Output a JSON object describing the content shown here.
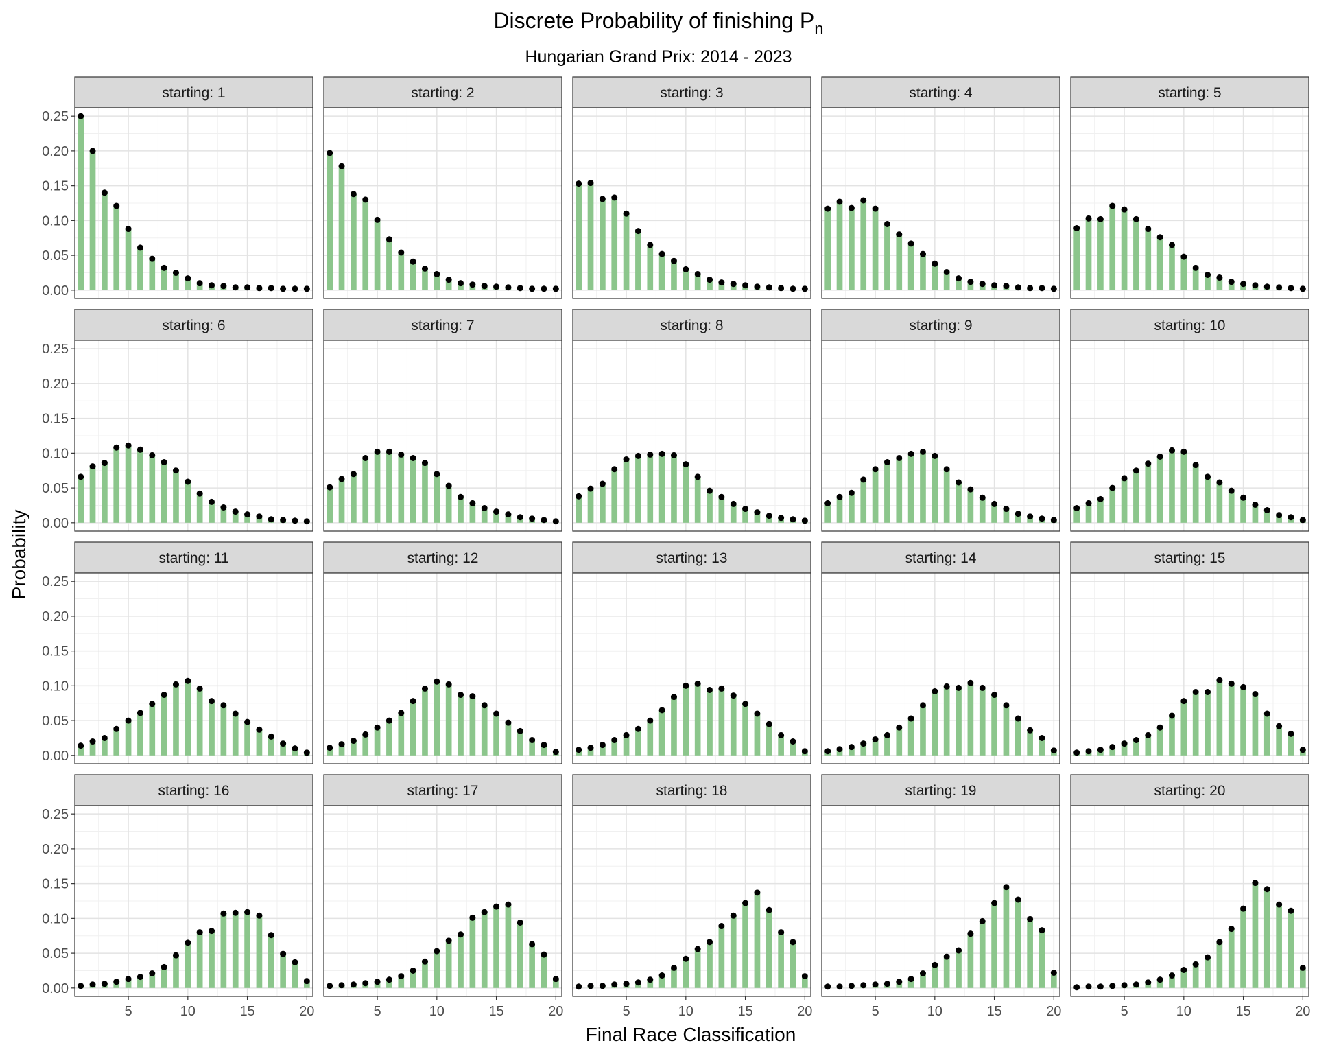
{
  "chart_data": {
    "type": "bar",
    "title": "Discrete Probability of finishing P",
    "title_subscript": "n",
    "subtitle": "Hungarian Grand Prix: 2014 - 2023",
    "xlabel": "Final Race Classification",
    "ylabel": "Probability",
    "xlim": [
      0.5,
      20.5
    ],
    "ylim": [
      -0.012,
      0.262
    ],
    "x_ticks": [
      5,
      10,
      15,
      20
    ],
    "y_ticks": [
      0.0,
      0.05,
      0.1,
      0.15,
      0.2,
      0.25
    ],
    "y_tick_labels": [
      "0.00",
      "0.05",
      "0.10",
      "0.15",
      "0.20",
      "0.25"
    ],
    "facet_rows": 4,
    "facet_cols": 5,
    "grid": true,
    "bar_color": "#8cc68c",
    "point_color": "#000000",
    "strip_fill": "#d9d9d9",
    "x": [
      1,
      2,
      3,
      4,
      5,
      6,
      7,
      8,
      9,
      10,
      11,
      12,
      13,
      14,
      15,
      16,
      17,
      18,
      19,
      20
    ],
    "panels": [
      {
        "label": "starting: 1",
        "values": [
          0.25,
          0.2,
          0.14,
          0.121,
          0.088,
          0.061,
          0.045,
          0.032,
          0.025,
          0.017,
          0.01,
          0.007,
          0.006,
          0.004,
          0.004,
          0.003,
          0.003,
          0.002,
          0.002,
          0.002
        ]
      },
      {
        "label": "starting: 2",
        "values": [
          0.197,
          0.178,
          0.138,
          0.13,
          0.101,
          0.073,
          0.054,
          0.041,
          0.031,
          0.023,
          0.015,
          0.01,
          0.008,
          0.006,
          0.005,
          0.004,
          0.003,
          0.002,
          0.002,
          0.002
        ]
      },
      {
        "label": "starting: 3",
        "values": [
          0.153,
          0.154,
          0.131,
          0.133,
          0.11,
          0.085,
          0.065,
          0.052,
          0.042,
          0.03,
          0.023,
          0.015,
          0.011,
          0.009,
          0.007,
          0.005,
          0.004,
          0.003,
          0.002,
          0.002
        ]
      },
      {
        "label": "starting: 4",
        "values": [
          0.117,
          0.127,
          0.118,
          0.129,
          0.117,
          0.095,
          0.08,
          0.067,
          0.052,
          0.038,
          0.026,
          0.017,
          0.012,
          0.009,
          0.007,
          0.006,
          0.004,
          0.003,
          0.003,
          0.002
        ]
      },
      {
        "label": "starting: 5",
        "values": [
          0.089,
          0.103,
          0.102,
          0.121,
          0.116,
          0.102,
          0.088,
          0.076,
          0.065,
          0.048,
          0.032,
          0.022,
          0.018,
          0.012,
          0.009,
          0.007,
          0.005,
          0.004,
          0.003,
          0.002
        ]
      },
      {
        "label": "starting: 6",
        "values": [
          0.066,
          0.081,
          0.086,
          0.108,
          0.111,
          0.105,
          0.097,
          0.087,
          0.075,
          0.059,
          0.042,
          0.03,
          0.022,
          0.016,
          0.012,
          0.009,
          0.005,
          0.004,
          0.003,
          0.002
        ]
      },
      {
        "label": "starting: 7",
        "values": [
          0.051,
          0.063,
          0.07,
          0.093,
          0.102,
          0.102,
          0.098,
          0.093,
          0.086,
          0.07,
          0.053,
          0.037,
          0.028,
          0.021,
          0.016,
          0.012,
          0.008,
          0.006,
          0.004,
          0.002
        ]
      },
      {
        "label": "starting: 8",
        "values": [
          0.038,
          0.049,
          0.056,
          0.077,
          0.091,
          0.096,
          0.098,
          0.099,
          0.097,
          0.084,
          0.066,
          0.046,
          0.037,
          0.027,
          0.02,
          0.015,
          0.01,
          0.007,
          0.005,
          0.003
        ]
      },
      {
        "label": "starting: 9",
        "values": [
          0.028,
          0.037,
          0.043,
          0.062,
          0.077,
          0.087,
          0.093,
          0.099,
          0.102,
          0.096,
          0.077,
          0.058,
          0.048,
          0.036,
          0.027,
          0.02,
          0.013,
          0.009,
          0.006,
          0.004
        ]
      },
      {
        "label": "starting: 10",
        "values": [
          0.021,
          0.028,
          0.034,
          0.05,
          0.064,
          0.075,
          0.085,
          0.095,
          0.104,
          0.102,
          0.083,
          0.066,
          0.058,
          0.046,
          0.036,
          0.026,
          0.018,
          0.011,
          0.008,
          0.004
        ]
      },
      {
        "label": "starting: 11",
        "values": [
          0.014,
          0.02,
          0.025,
          0.038,
          0.05,
          0.061,
          0.074,
          0.087,
          0.102,
          0.107,
          0.096,
          0.078,
          0.072,
          0.06,
          0.048,
          0.037,
          0.027,
          0.017,
          0.01,
          0.004
        ]
      },
      {
        "label": "starting: 12",
        "values": [
          0.011,
          0.016,
          0.021,
          0.03,
          0.04,
          0.05,
          0.061,
          0.078,
          0.096,
          0.106,
          0.102,
          0.087,
          0.085,
          0.072,
          0.06,
          0.047,
          0.035,
          0.022,
          0.015,
          0.005
        ]
      },
      {
        "label": "starting: 13",
        "values": [
          0.008,
          0.011,
          0.015,
          0.022,
          0.029,
          0.038,
          0.05,
          0.065,
          0.084,
          0.1,
          0.103,
          0.094,
          0.096,
          0.086,
          0.074,
          0.06,
          0.045,
          0.029,
          0.02,
          0.006
        ]
      },
      {
        "label": "starting: 14",
        "values": [
          0.006,
          0.009,
          0.012,
          0.017,
          0.023,
          0.029,
          0.04,
          0.053,
          0.072,
          0.092,
          0.099,
          0.097,
          0.104,
          0.097,
          0.087,
          0.072,
          0.053,
          0.036,
          0.025,
          0.007
        ]
      },
      {
        "label": "starting: 15",
        "values": [
          0.004,
          0.006,
          0.008,
          0.012,
          0.017,
          0.022,
          0.029,
          0.04,
          0.057,
          0.078,
          0.091,
          0.091,
          0.108,
          0.103,
          0.098,
          0.088,
          0.06,
          0.042,
          0.031,
          0.008
        ]
      },
      {
        "label": "starting: 16",
        "values": [
          0.003,
          0.005,
          0.006,
          0.009,
          0.013,
          0.016,
          0.021,
          0.03,
          0.047,
          0.065,
          0.08,
          0.082,
          0.107,
          0.108,
          0.109,
          0.104,
          0.076,
          0.049,
          0.037,
          0.01
        ]
      },
      {
        "label": "starting: 17",
        "values": [
          0.003,
          0.004,
          0.005,
          0.007,
          0.009,
          0.012,
          0.017,
          0.025,
          0.038,
          0.053,
          0.068,
          0.077,
          0.101,
          0.109,
          0.117,
          0.12,
          0.094,
          0.063,
          0.048,
          0.013
        ]
      },
      {
        "label": "starting: 18",
        "values": [
          0.002,
          0.003,
          0.003,
          0.005,
          0.006,
          0.008,
          0.012,
          0.018,
          0.029,
          0.042,
          0.056,
          0.066,
          0.089,
          0.104,
          0.122,
          0.137,
          0.112,
          0.08,
          0.066,
          0.017
        ]
      },
      {
        "label": "starting: 19",
        "values": [
          0.002,
          0.002,
          0.003,
          0.004,
          0.005,
          0.006,
          0.009,
          0.013,
          0.021,
          0.033,
          0.045,
          0.054,
          0.078,
          0.096,
          0.122,
          0.145,
          0.127,
          0.099,
          0.083,
          0.022
        ]
      },
      {
        "label": "starting: 20",
        "values": [
          0.001,
          0.002,
          0.002,
          0.003,
          0.004,
          0.005,
          0.008,
          0.012,
          0.018,
          0.026,
          0.034,
          0.044,
          0.066,
          0.085,
          0.114,
          0.151,
          0.142,
          0.12,
          0.111,
          0.029
        ]
      }
    ]
  }
}
